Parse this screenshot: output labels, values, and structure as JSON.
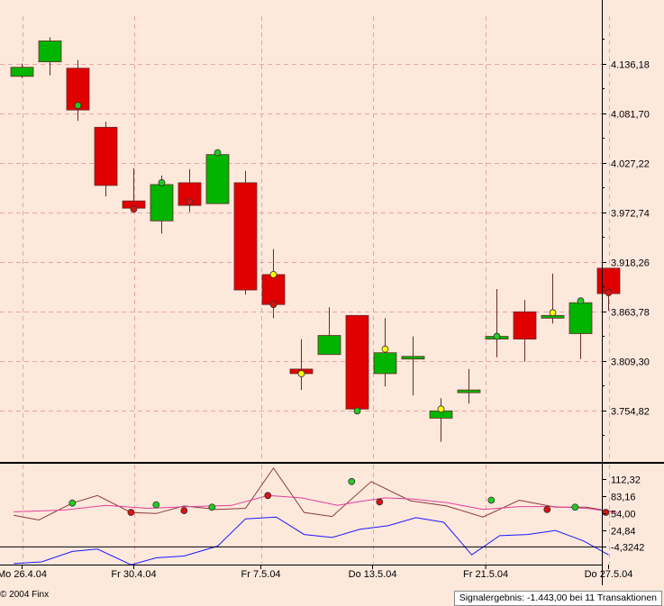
{
  "chart_data": {
    "type": "candlestick",
    "main": {
      "y_ticks": [
        "4.136,18",
        "4.081,70",
        "4.027,22",
        "3.972,74",
        "3.918,26",
        "3.863,78",
        "3.809,30",
        "3.754,82"
      ],
      "y_tick_values": [
        4136.18,
        4081.7,
        4027.22,
        3972.74,
        3918.26,
        3863.78,
        3809.3,
        3754.82
      ],
      "candles": [
        {
          "open": 4122,
          "close": 4132,
          "high": 4136,
          "low": 4120
        },
        {
          "open": 4138,
          "close": 4161,
          "high": 4165,
          "low": 4123
        },
        {
          "open": 4131,
          "close": 4085,
          "high": 4140,
          "low": 4073
        },
        {
          "open": 4066,
          "close": 4002,
          "high": 4072,
          "low": 3990
        },
        {
          "open": 3985,
          "close": 3977,
          "high": 4021,
          "low": 3976
        },
        {
          "open": 3963,
          "close": 4003,
          "high": 4013,
          "low": 3949
        },
        {
          "open": 4005,
          "close": 3980,
          "high": 4020,
          "low": 3973
        },
        {
          "open": 3982,
          "close": 4036,
          "high": 4038,
          "low": 3982
        },
        {
          "open": 4005,
          "close": 3887,
          "high": 4018,
          "low": 3882
        },
        {
          "open": 3904,
          "close": 3871,
          "high": 3932,
          "low": 3856
        },
        {
          "open": 3800,
          "close": 3795,
          "high": 3833,
          "low": 3777
        },
        {
          "open": 3816,
          "close": 3837,
          "high": 3868,
          "low": 3816
        },
        {
          "open": 3859,
          "close": 3756,
          "high": 3859,
          "low": 3756
        },
        {
          "open": 3795,
          "close": 3818,
          "high": 3856,
          "low": 3781
        },
        {
          "open": 3814,
          "close": 3814,
          "high": 3836,
          "low": 3771
        },
        {
          "open": 3746,
          "close": 3754,
          "high": 3768,
          "low": 3720
        },
        {
          "open": 3776,
          "close": 3777,
          "high": 3800,
          "low": 3762
        },
        {
          "open": 3835,
          "close": 3836,
          "high": 3888,
          "low": 3813
        },
        {
          "open": 3863,
          "close": 3833,
          "high": 3876,
          "low": 3808
        },
        {
          "open": 3856,
          "close": 3859,
          "high": 3905,
          "low": 3850
        },
        {
          "open": 3839,
          "close": 3873,
          "high": 3874,
          "low": 3811
        },
        {
          "open": 3911,
          "close": 3883,
          "high": 3911,
          "low": 3864
        }
      ],
      "markers": [
        {
          "candle": 2,
          "value": 4090,
          "color": "green"
        },
        {
          "candle": 4,
          "value": 3976,
          "color": "red"
        },
        {
          "candle": 5,
          "value": 4005,
          "color": "green"
        },
        {
          "candle": 6,
          "value": 3984,
          "color": "red"
        },
        {
          "candle": 7,
          "value": 4038,
          "color": "green"
        },
        {
          "candle": 9,
          "value": 3904,
          "color": "yellow"
        },
        {
          "candle": 9,
          "value": 3871,
          "color": "red"
        },
        {
          "candle": 10,
          "value": 3795,
          "color": "yellow"
        },
        {
          "candle": 12,
          "value": 3754,
          "color": "green"
        },
        {
          "candle": 13,
          "value": 3822,
          "color": "yellow"
        },
        {
          "candle": 15,
          "value": 3756,
          "color": "yellow"
        },
        {
          "candle": 17,
          "value": 3836,
          "color": "green"
        },
        {
          "candle": 19,
          "value": 3862,
          "color": "yellow"
        },
        {
          "candle": 20,
          "value": 3875,
          "color": "green"
        },
        {
          "candle": 21,
          "value": 3884,
          "color": "red"
        }
      ]
    },
    "indicator": {
      "y_ticks": [
        "112,32",
        "83,16",
        "54,00",
        "24,84",
        "-4,3242"
      ],
      "y_tick_values": [
        112.32,
        83.16,
        54.0,
        24.84,
        -4.3242
      ],
      "series": [
        {
          "color": "#8b3a3a",
          "points": [
            [
              -0.3,
              50
            ],
            [
              0.6,
              42
            ],
            [
              1.8,
              71
            ],
            [
              2.7,
              84
            ],
            [
              3.9,
              55
            ],
            [
              4.8,
              53
            ],
            [
              5.8,
              66
            ],
            [
              7.0,
              60
            ],
            [
              8.0,
              62
            ],
            [
              9.0,
              131
            ],
            [
              10.1,
              55
            ],
            [
              11.1,
              48
            ],
            [
              12.5,
              108
            ],
            [
              13.9,
              75
            ],
            [
              15.2,
              66
            ],
            [
              16.5,
              47
            ],
            [
              17.8,
              76
            ],
            [
              19.1,
              64
            ],
            [
              20.2,
              64
            ],
            [
              21.3,
              55
            ]
          ]
        },
        {
          "color": "#e0409a",
          "points": [
            [
              -0.3,
              56
            ],
            [
              1.5,
              59
            ],
            [
              3.0,
              67
            ],
            [
              4.5,
              62
            ],
            [
              6.0,
              65
            ],
            [
              7.5,
              67
            ],
            [
              8.8,
              84
            ],
            [
              10.0,
              80
            ],
            [
              11.3,
              67
            ],
            [
              12.0,
              73
            ],
            [
              13.0,
              80
            ],
            [
              14.0,
              78
            ],
            [
              15.2,
              72
            ],
            [
              16.5,
              60
            ],
            [
              17.8,
              65
            ],
            [
              19.0,
              65
            ],
            [
              20.2,
              62
            ],
            [
              21.3,
              55
            ]
          ]
        },
        {
          "color": "#1a1aff",
          "points": [
            [
              -0.3,
              -33
            ],
            [
              0.7,
              -30
            ],
            [
              1.8,
              -12
            ],
            [
              2.7,
              -8
            ],
            [
              3.9,
              -35
            ],
            [
              4.8,
              -23
            ],
            [
              5.8,
              -20
            ],
            [
              7.0,
              -3
            ],
            [
              8.0,
              44
            ],
            [
              9.1,
              47
            ],
            [
              10.1,
              17
            ],
            [
              11.1,
              12
            ],
            [
              12.1,
              26
            ],
            [
              13.1,
              32
            ],
            [
              14.1,
              46
            ],
            [
              15.1,
              38
            ],
            [
              16.1,
              -18
            ],
            [
              17.1,
              15
            ],
            [
              18.1,
              17
            ],
            [
              19.1,
              24
            ],
            [
              20.1,
              6
            ],
            [
              21.0,
              -18
            ]
          ]
        }
      ],
      "markers": [
        {
          "x": 1.8,
          "value": 71,
          "color": "green"
        },
        {
          "x": 3.9,
          "value": 55,
          "color": "red"
        },
        {
          "x": 4.8,
          "value": 68,
          "color": "green"
        },
        {
          "x": 5.8,
          "value": 58,
          "color": "red"
        },
        {
          "x": 6.8,
          "value": 64,
          "color": "green"
        },
        {
          "x": 8.8,
          "value": 84,
          "color": "red"
        },
        {
          "x": 11.8,
          "value": 108,
          "color": "green"
        },
        {
          "x": 12.8,
          "value": 73,
          "color": "red"
        },
        {
          "x": 16.8,
          "value": 76,
          "color": "green"
        },
        {
          "x": 18.8,
          "value": 60,
          "color": "red"
        },
        {
          "x": 19.8,
          "value": 64,
          "color": "green"
        },
        {
          "x": 20.9,
          "value": 55,
          "color": "red"
        }
      ]
    },
    "x_labels": [
      {
        "label": "Mo 26.4.04",
        "candle": 0
      },
      {
        "label": "Fr 30.4.04",
        "candle": 4
      },
      {
        "label": "Fr 7.5.04",
        "candle": 8.55
      },
      {
        "label": "Do 13.5.04",
        "candle": 12.55
      },
      {
        "label": "Fr 21.5.04",
        "candle": 16.6
      },
      {
        "label": "Do 27.5.04",
        "candle": 21
      }
    ]
  },
  "footer": {
    "copyright": "© 2004 Finx",
    "signal_result": "Signalergebnis: -1.443,00 bei 11 Transaktionen"
  },
  "colors": {
    "background": "#fde8dc",
    "up": "#00b400",
    "down": "#e00000",
    "grid": "#e6a6a6",
    "marker_green": "#22cc22",
    "marker_red": "#dd1111",
    "marker_yellow": "#ffff00"
  }
}
